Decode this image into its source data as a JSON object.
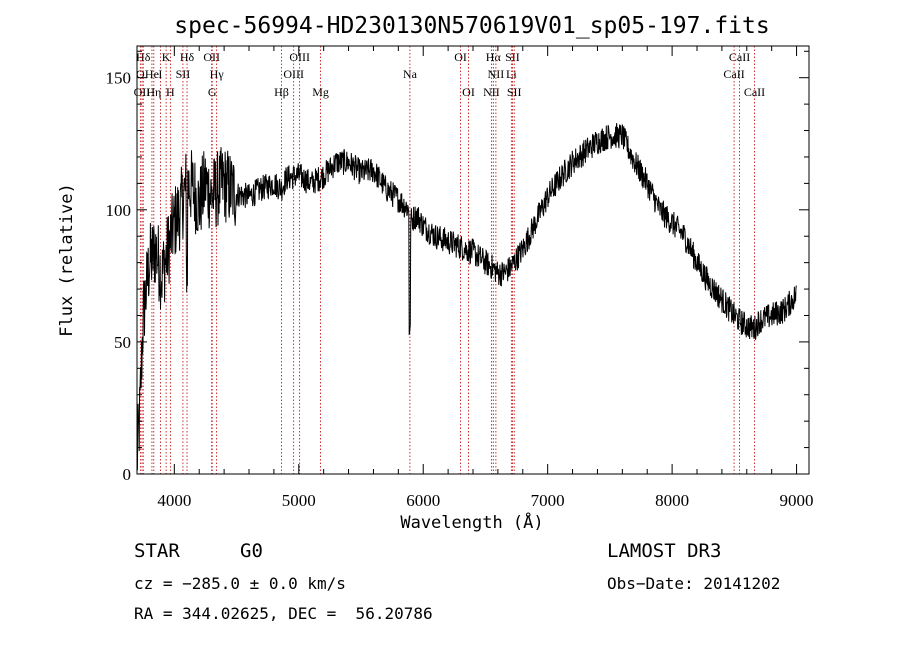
{
  "chart_data": {
    "type": "line",
    "title": "spec-56994-HD230130N570619V01_sp05-197.fits",
    "xlabel": "Wavelength (Å)",
    "ylabel": "Flux (relative)",
    "xlim": [
      3700,
      9100
    ],
    "ylim": [
      0,
      162
    ],
    "xticks": [
      4000,
      5000,
      6000,
      7000,
      8000,
      9000
    ],
    "yticks": [
      0,
      50,
      100,
      150
    ],
    "colors": {
      "spectrum": "#000000",
      "lines": "#c00000",
      "axes": "#000000"
    },
    "spectrum_anchors": {
      "x": [
        3700,
        3720,
        3750,
        3800,
        3850,
        3900,
        3950,
        4000,
        4050,
        4100,
        4150,
        4200,
        4250,
        4300,
        4350,
        4400,
        4500,
        4600,
        4700,
        4800,
        4861,
        4900,
        5000,
        5100,
        5200,
        5300,
        5400,
        5500,
        5600,
        5700,
        5800,
        5890,
        5900,
        5950,
        6000,
        6100,
        6200,
        6300,
        6400,
        6500,
        6563,
        6600,
        6650,
        6700,
        6800,
        6900,
        7000,
        7100,
        7200,
        7300,
        7400,
        7500,
        7600,
        7700,
        7800,
        7900,
        8000,
        8100,
        8200,
        8300,
        8400,
        8498,
        8542,
        8600,
        8662,
        8700,
        8800,
        8900,
        9000
      ],
      "y": [
        5,
        20,
        60,
        80,
        85,
        75,
        85,
        95,
        100,
        110,
        108,
        102,
        110,
        105,
        108,
        110,
        106,
        105,
        108,
        110,
        108,
        112,
        113,
        110,
        113,
        118,
        118,
        114,
        115,
        108,
        104,
        100,
        96,
        98,
        94,
        90,
        88,
        86,
        84,
        80,
        78,
        76,
        76,
        78,
        85,
        95,
        105,
        112,
        118,
        122,
        126,
        128,
        128,
        118,
        110,
        100,
        95,
        90,
        80,
        72,
        66,
        60,
        58,
        56,
        55,
        58,
        60,
        62,
        68
      ]
    },
    "spectrum_noise": 5,
    "spectral_lines": [
      {
        "label": "Hδ",
        "x": 3750,
        "row": 0
      },
      {
        "label": "K",
        "x": 3934,
        "row": 0
      },
      {
        "label": "Hδ",
        "x": 4102,
        "row": 0
      },
      {
        "label": "OII",
        "x": 4300,
        "row": 0
      },
      {
        "label": "OIII",
        "x": 5007,
        "row": 0
      },
      {
        "label": "OI",
        "x": 6300,
        "row": 0
      },
      {
        "label": "Hα",
        "x": 6563,
        "row": 0
      },
      {
        "label": "SII",
        "x": 6717,
        "row": 0
      },
      {
        "label": "CaII",
        "x": 8542,
        "row": 0
      },
      {
        "label": "O",
        "x": 3727,
        "row": 1
      },
      {
        "label": "He",
        "x": 3820,
        "row": 1
      },
      {
        "label": "I",
        "x": 3888,
        "row": 1
      },
      {
        "label": "SII",
        "x": 4069,
        "row": 1
      },
      {
        "label": "Hγ",
        "x": 4340,
        "row": 1
      },
      {
        "label": "OIII",
        "x": 4959,
        "row": 1
      },
      {
        "label": "Na",
        "x": 5893,
        "row": 1
      },
      {
        "label": "NII",
        "x": 6584,
        "row": 1
      },
      {
        "label": "Li",
        "x": 6708,
        "row": 1
      },
      {
        "label": "CaII",
        "x": 8498,
        "row": 1
      },
      {
        "label": "OII",
        "x": 3740,
        "row": 2
      },
      {
        "label": "Hη",
        "x": 3835,
        "row": 2
      },
      {
        "label": "H",
        "x": 3968,
        "row": 2
      },
      {
        "label": "G",
        "x": 4304,
        "row": 2
      },
      {
        "label": "Hβ",
        "x": 4861,
        "row": 2
      },
      {
        "label": "Mg",
        "x": 5175,
        "row": 2
      },
      {
        "label": "OI",
        "x": 6364,
        "row": 2
      },
      {
        "label": "NII",
        "x": 6548,
        "row": 2
      },
      {
        "label": "SII",
        "x": 6731,
        "row": 2
      },
      {
        "label": "CaII",
        "x": 8662,
        "row": 2
      }
    ]
  },
  "info": {
    "object_class": "STAR",
    "subclass": "G0",
    "survey": "LAMOST DR3",
    "cz": "cz = −285.0 ± 0.0 km/s",
    "obs_date": "Obs−Date: 20141202",
    "radec": "RA = 344.02625, DEC =  56.20786"
  }
}
